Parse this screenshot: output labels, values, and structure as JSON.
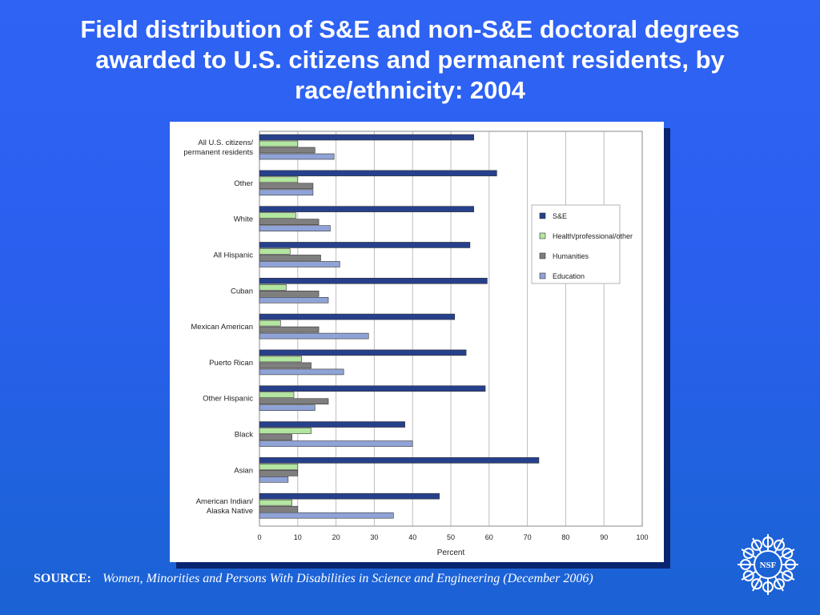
{
  "slide": {
    "title": "Field distribution of S&E and non-S&E doctoral degrees awarded to U.S. citizens and permanent residents, by race/ethnicity: 2004",
    "source_label": "SOURCE:",
    "source_text": "Women, Minorities and Persons With Disabilities in Science and Engineering (December 2006)",
    "logo_text": "NSF"
  },
  "chart_data": {
    "type": "bar",
    "orientation": "horizontal",
    "title": "",
    "xlabel": "Percent",
    "ylabel": "",
    "xlim": [
      0,
      100
    ],
    "xticks": [
      0,
      10,
      20,
      30,
      40,
      50,
      60,
      70,
      80,
      90,
      100
    ],
    "grid": true,
    "legend_position": "right",
    "categories": [
      [
        "All U.S. citizens/",
        "permanent residents"
      ],
      [
        "Other"
      ],
      [
        "White"
      ],
      [
        "All Hispanic"
      ],
      [
        "Cuban"
      ],
      [
        "Mexican American"
      ],
      [
        "Puerto Rican"
      ],
      [
        "Other Hispanic"
      ],
      [
        "Black"
      ],
      [
        "Asian"
      ],
      [
        "American Indian/",
        "Alaska Native"
      ]
    ],
    "series": [
      {
        "name": "S&E",
        "color": "#27408b",
        "values": [
          56,
          62,
          56,
          55,
          59.5,
          51,
          54,
          59,
          38,
          73,
          47
        ]
      },
      {
        "name": "Health/professional/other",
        "color": "#b3e6a0",
        "values": [
          10,
          10,
          9.5,
          8,
          7,
          5.5,
          11,
          9,
          13.5,
          10,
          8.5
        ]
      },
      {
        "name": "Humanities",
        "color": "#7f7f7f",
        "values": [
          14.5,
          14,
          15.5,
          16,
          15.5,
          15.5,
          13.5,
          18,
          8.5,
          10,
          10
        ]
      },
      {
        "name": "Education",
        "color": "#8fa3d6",
        "values": [
          19.5,
          14,
          18.5,
          21,
          18,
          28.5,
          22,
          14.5,
          40,
          7.5,
          35
        ]
      }
    ]
  }
}
